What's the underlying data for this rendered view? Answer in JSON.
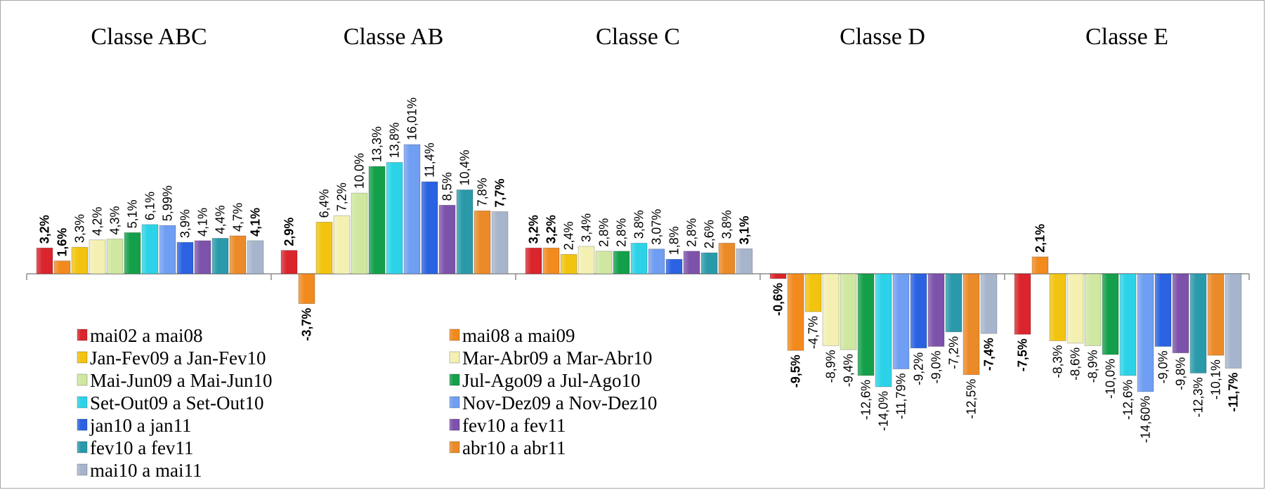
{
  "chart_data": {
    "type": "bar",
    "groups": [
      "Classe ABC",
      "Classe AB",
      "Classe C",
      "Classe D",
      "Classe E"
    ],
    "series": [
      {
        "name": "mai02 a mai08",
        "color": "#d9252b",
        "values": [
          3.2,
          2.9,
          3.2,
          -0.6,
          -7.5
        ],
        "labels": [
          "3,2%",
          "2,9%",
          "3,2%",
          "-0,6%",
          "-7,5%"
        ],
        "bold": true
      },
      {
        "name": "mai08 a mai09",
        "color": "#f28a1e",
        "values": [
          1.6,
          -3.7,
          3.2,
          -9.5,
          2.1
        ],
        "labels": [
          "1,6%",
          "-3,7%",
          "3,2%",
          "-9,5%",
          "2,1%"
        ],
        "bold": true
      },
      {
        "name": "Jan-Fev09 a Jan-Fev10",
        "color": "#f2c40f",
        "values": [
          3.3,
          6.4,
          2.4,
          -4.7,
          -8.3
        ],
        "labels": [
          "3,3%",
          "6,4%",
          "2,4%",
          "-4,7%",
          "-8,3%"
        ],
        "bold": false
      },
      {
        "name": "Mar-Abr09 a Mar-Abr10",
        "color": "#f3f0b2",
        "values": [
          4.2,
          7.2,
          3.4,
          -8.9,
          -8.6
        ],
        "labels": [
          "4,2%",
          "7,2%",
          "3,4%",
          "-8,9%",
          "-8,6%"
        ],
        "bold": false
      },
      {
        "name": "Mai-Jun09 a Mai-Jun10",
        "color": "#cfe7a0",
        "values": [
          4.3,
          10.0,
          2.8,
          -9.4,
          -8.9
        ],
        "labels": [
          "4,3%",
          "10,0%",
          "2,8%",
          "-9,4%",
          "-8,9%"
        ],
        "bold": false
      },
      {
        "name": "Jul-Ago09 a Jul-Ago10",
        "color": "#14a04a",
        "values": [
          5.1,
          13.3,
          2.8,
          -12.6,
          -10.0
        ],
        "labels": [
          "5,1%",
          "13,3%",
          "2,8%",
          "-12,6%",
          "-10,0%"
        ],
        "bold": false
      },
      {
        "name": "Set-Out09 a Set-Out10",
        "color": "#2cd3e8",
        "values": [
          6.1,
          13.8,
          3.8,
          -14.0,
          -12.6
        ],
        "labels": [
          "6,1%",
          "13,8%",
          "3,8%",
          "-14,0%",
          "-12,6%"
        ],
        "bold": false
      },
      {
        "name": "Nov-Dez09 a Nov-Dez10",
        "color": "#6f9ef2",
        "values": [
          5.99,
          16.01,
          3.07,
          -11.79,
          -14.6
        ],
        "labels": [
          "5,99%",
          "16,01%",
          "3,07%",
          "-11,79%",
          "-14,60%"
        ],
        "bold": false
      },
      {
        "name": "jan10 a jan11",
        "color": "#2a62e2",
        "values": [
          3.9,
          11.4,
          1.8,
          -9.2,
          -9.0
        ],
        "labels": [
          "3,9%",
          "11,4%",
          "1,8%",
          "-9,2%",
          "-9,0%"
        ],
        "bold": false
      },
      {
        "name": "fev10 a fev11",
        "color": "#7d52ab",
        "values": [
          4.1,
          8.5,
          2.8,
          -9.0,
          -9.8
        ],
        "labels": [
          "4,1%",
          "8,5%",
          "2,8%",
          "-9,0%",
          "-9,8%"
        ],
        "bold": false
      },
      {
        "name": "fev10 a fev11",
        "color": "#2a9aab",
        "values": [
          4.4,
          10.4,
          2.6,
          -7.2,
          -12.3
        ],
        "labels": [
          "4,4%",
          "10,4%",
          "2,6%",
          "-7,2%",
          "-12,3%"
        ],
        "bold": false
      },
      {
        "name": "abr10 a abr11",
        "color": "#eb8a28",
        "values": [
          4.7,
          7.8,
          3.8,
          -12.5,
          -10.1
        ],
        "labels": [
          "4,7%",
          "7,8%",
          "3,8%",
          "-12,5%",
          "-10,1%"
        ],
        "bold": false
      },
      {
        "name": "mai10 a mai11",
        "color": "#a7b5cc",
        "values": [
          4.1,
          7.7,
          3.1,
          -7.4,
          -11.7
        ],
        "labels": [
          "4,1%",
          "7,7%",
          "3,1%",
          "-7,4%",
          "-11,7%"
        ],
        "bold": true
      }
    ],
    "ylim": [
      -20,
      17
    ],
    "legend": "bottom-left, two columns",
    "grid": false
  }
}
